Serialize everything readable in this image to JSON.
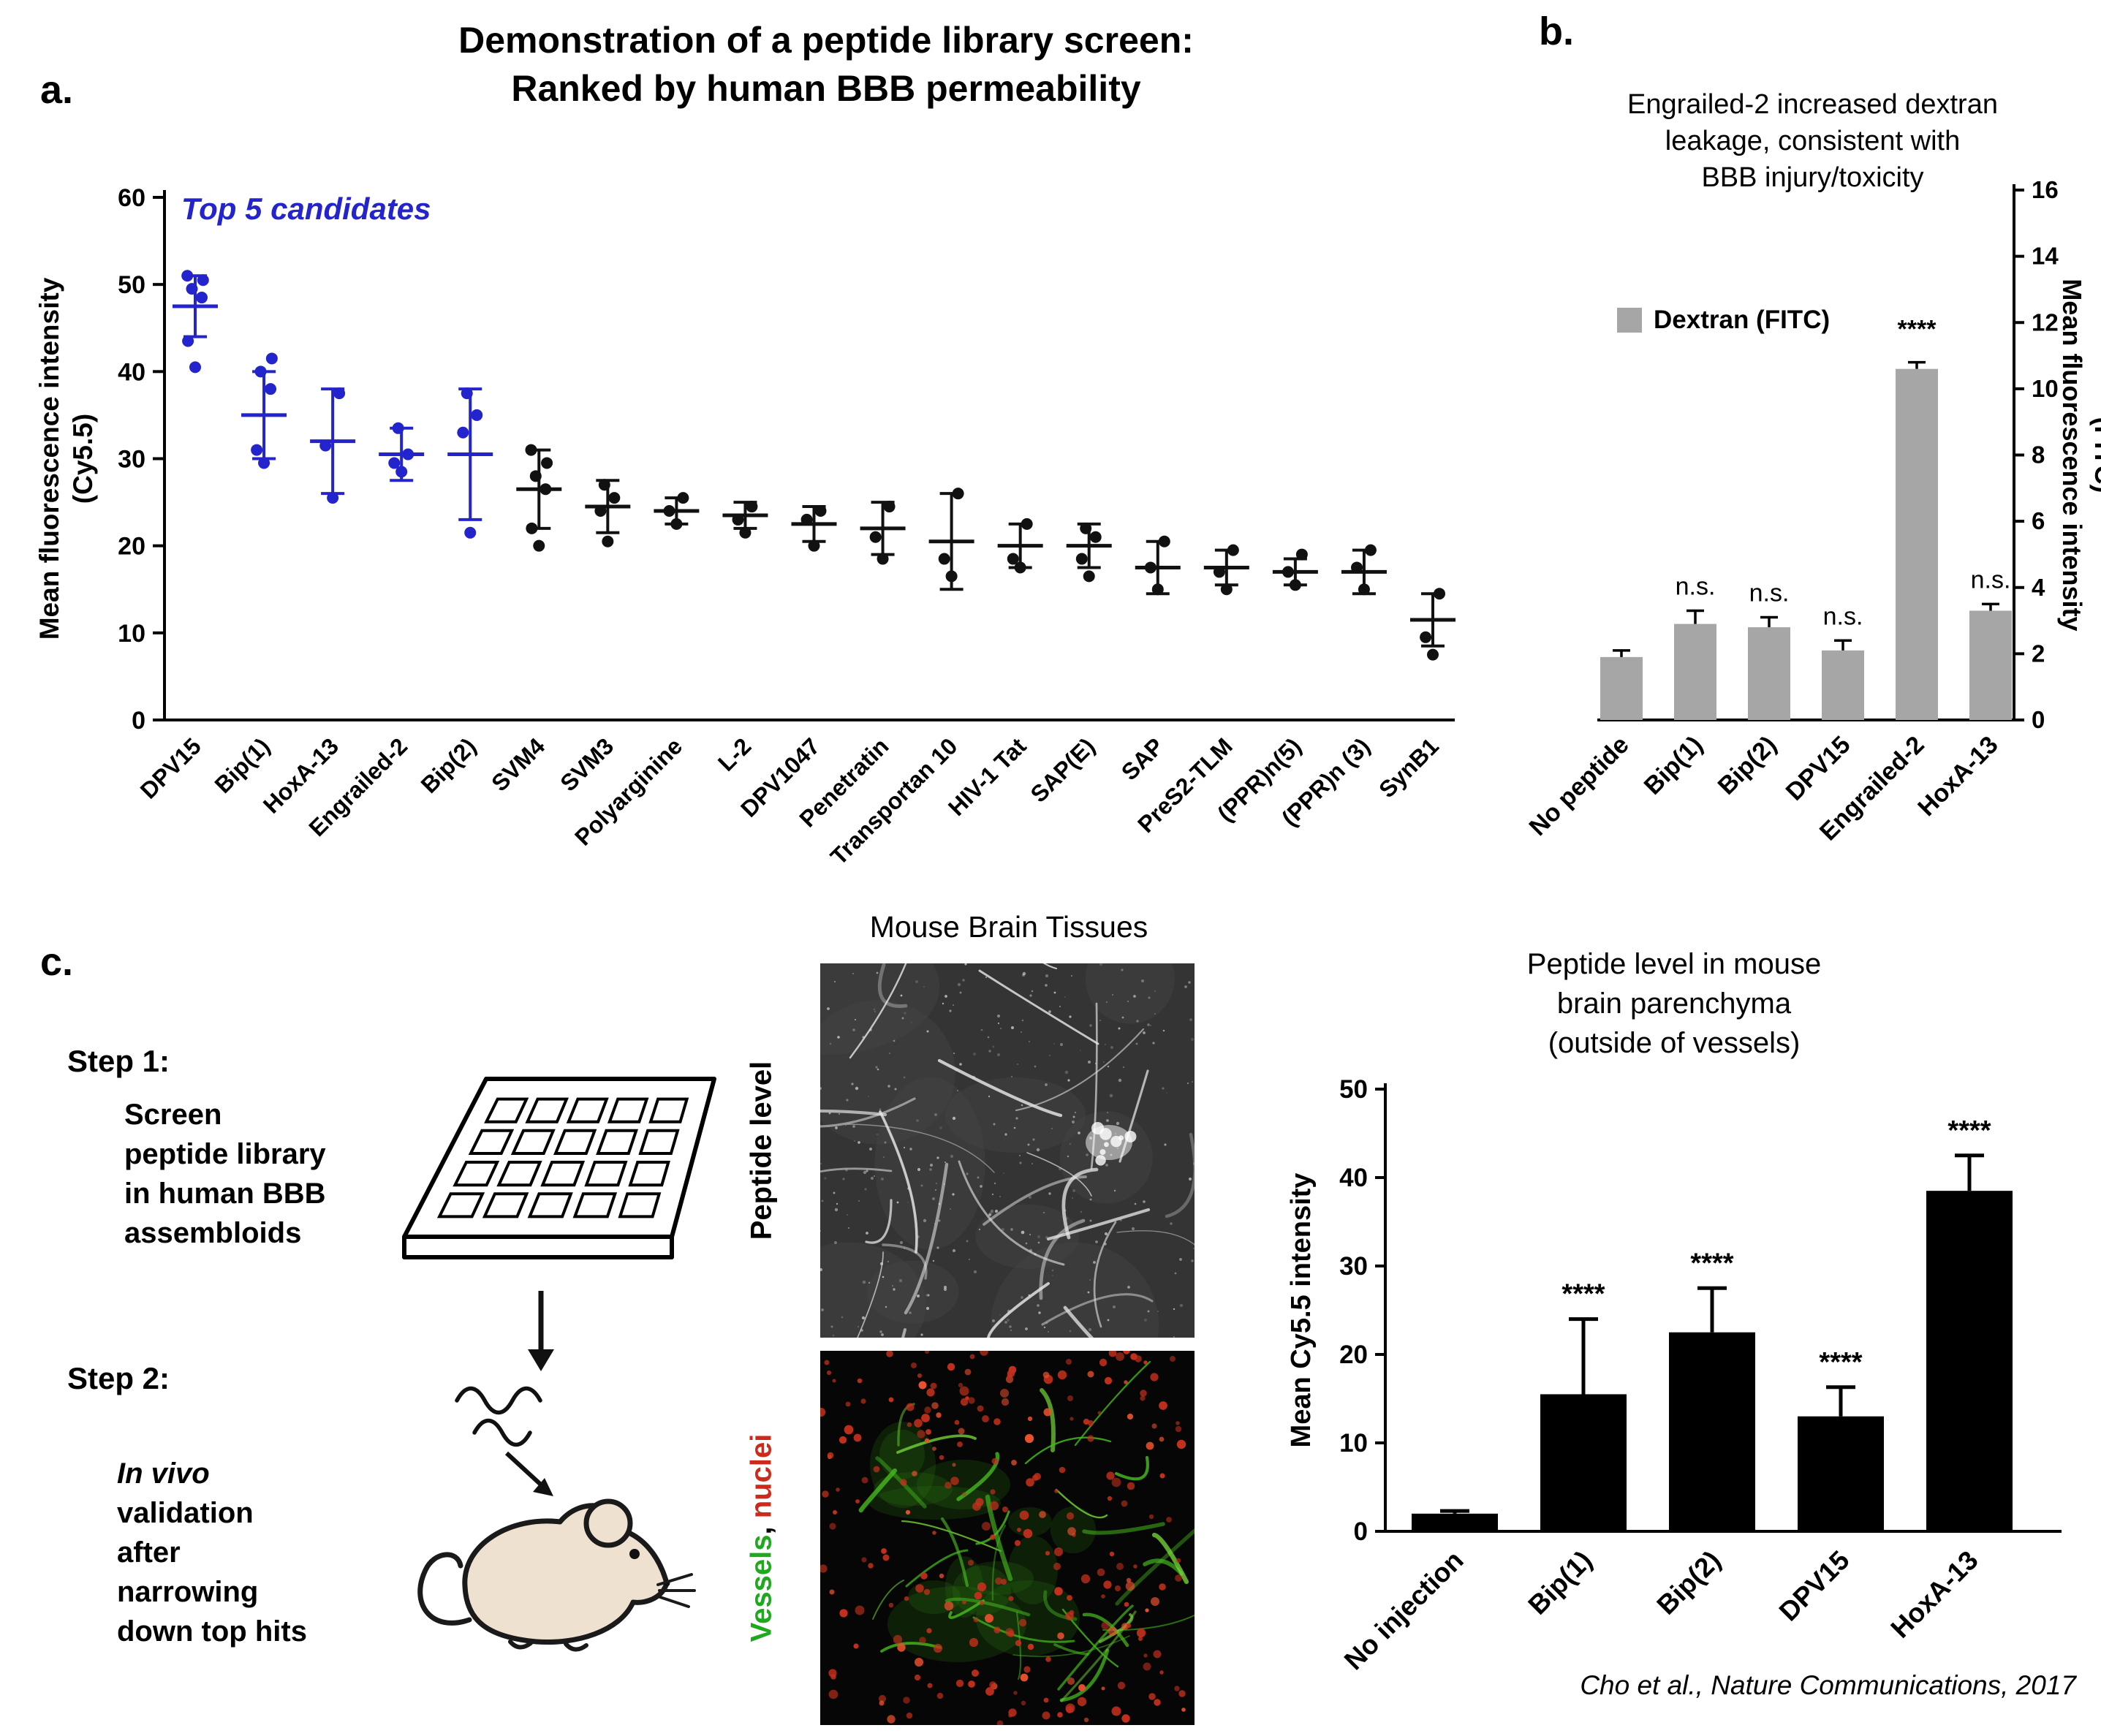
{
  "figure": {
    "title_line1": "Demonstration of a peptide library screen:",
    "title_line2": "Ranked by human BBB permeability",
    "citation": "Cho et al., Nature Communications, 2017"
  },
  "panel_a": {
    "label": "a.",
    "annotation": "Top 5 candidates",
    "accent_color": "#2424cd"
  },
  "panel_b": {
    "label": "b.",
    "title_lines": [
      "Engrailed-2 increased dextran",
      "leakage, consistent with",
      "BBB injury/toxicity"
    ],
    "legend_label": "Dextran (FITC)"
  },
  "panel_c": {
    "label": "c.",
    "step1_heading": "Step 1:",
    "step1_text": "Screen\npeptide library\nin human BBB\nassembloids",
    "step2_heading": "Step 2:",
    "step2_italic": "In vivo",
    "step2_text": "validation\nafter\nnarrowing\ndown top hits",
    "tissues_title": "Mouse Brain Tissues",
    "image1_label": "Peptide level",
    "image2_label_green": "Vessels",
    "image2_label_sep": ", ",
    "image2_label_red": "nuclei",
    "green_color": "#1fa91f",
    "red_color": "#cc2a1a",
    "chart_title_lines": [
      "Peptide level in mouse",
      "brain parenchyma",
      "(outside of vessels)"
    ]
  },
  "chart_data": [
    {
      "type": "scatter",
      "title": "Demonstration of a peptide library screen: Ranked by human BBB permeability",
      "ylabel": "Mean fluorescence intensity (Cy5.5)",
      "ylabel_lines": [
        "Mean fluorescence intensity",
        "(Cy5.5)"
      ],
      "ylim": [
        0,
        60
      ],
      "ytick_step": 10,
      "highlight_count": 5,
      "highlight_color": "#2424cd",
      "point_color": "#111111",
      "annotation": "Top 5 candidates",
      "categories": [
        "DPV15",
        "Bip(1)",
        "HoxA-13",
        "Engrailed-2",
        "Bip(2)",
        "SVM4",
        "SVM3",
        "Polyarginine",
        "L-2",
        "DPV1047",
        "Penetratin",
        "Transportan 10",
        "HIV-1 Tat",
        "SAP(E)",
        "SAP",
        "PreS2-TLM",
        "(PPR)n(5)",
        "(PPR)n (3)",
        "SynB1"
      ],
      "means": [
        47.5,
        35,
        32,
        30.5,
        30.5,
        26.5,
        24.5,
        24,
        23.5,
        22.5,
        22,
        20.5,
        20,
        20,
        17.5,
        17.5,
        17,
        17,
        11.5
      ],
      "errors": [
        3.5,
        5,
        6,
        3,
        7.5,
        4.5,
        3,
        1.5,
        1.5,
        2,
        3,
        5.5,
        2.5,
        2.5,
        3,
        2,
        1.5,
        2.5,
        3
      ],
      "points": [
        [
          40.5,
          43.5,
          48.5,
          49.5,
          50.5,
          51
        ],
        [
          29.5,
          31,
          38,
          40,
          41.5
        ],
        [
          25.5,
          31.5,
          37.5
        ],
        [
          28.5,
          29.5,
          30.5,
          33.5
        ],
        [
          21.5,
          33,
          35,
          37.5
        ],
        [
          20,
          22,
          26.5,
          28,
          29.5,
          31
        ],
        [
          20.5,
          24,
          25.5,
          27
        ],
        [
          22.5,
          24,
          25.5
        ],
        [
          21.5,
          23,
          24.5
        ],
        [
          20,
          23,
          24
        ],
        [
          18.5,
          21,
          24.5
        ],
        [
          16.5,
          18.5,
          26
        ],
        [
          17.5,
          18.5,
          22.5
        ],
        [
          16.5,
          18.5,
          21,
          22
        ],
        [
          15,
          17.5,
          20.5
        ],
        [
          15,
          17,
          19.5
        ],
        [
          15.5,
          17,
          19
        ],
        [
          15,
          17.5,
          19.5
        ],
        [
          7.5,
          9.5,
          14.5
        ]
      ]
    },
    {
      "type": "bar",
      "title": "Engrailed-2 increased dextran leakage, consistent with BBB injury/toxicity",
      "legend": "Dextran (FITC)",
      "ylabel": "Mean fluorescence intensity (FITC)",
      "ylabel_lines": [
        "Mean fluorescence intensity",
        "(FITC)"
      ],
      "ylim": [
        0,
        16
      ],
      "ytick_step": 2,
      "yaxis_side": "right",
      "bar_color": "#a6a6a6",
      "categories": [
        "No peptide",
        "Bip(1)",
        "Bip(2)",
        "DPV15",
        "Engrailed-2",
        "HoxA-13"
      ],
      "values": [
        1.9,
        2.9,
        2.8,
        2.1,
        10.6,
        3.3
      ],
      "errors": [
        0.2,
        0.4,
        0.3,
        0.3,
        0.2,
        0.2
      ],
      "annotations": [
        "",
        "n.s.",
        "n.s.",
        "n.s.",
        "****",
        "n.s."
      ]
    },
    {
      "type": "bar",
      "title": "Peptide level in mouse brain parenchyma (outside of vessels)",
      "ylabel": "Mean Cy5.5 intensity",
      "ylim": [
        0,
        50
      ],
      "ytick_step": 10,
      "bar_color": "#000000",
      "categories": [
        "No injection",
        "Bip(1)",
        "Bip(2)",
        "DPV15",
        "HoxA-13"
      ],
      "values": [
        2,
        15.5,
        22.5,
        13,
        38.5
      ],
      "errors": [
        0.3,
        8.5,
        5,
        3.3,
        4
      ],
      "annotations": [
        "",
        "****",
        "****",
        "****",
        "****"
      ]
    }
  ]
}
